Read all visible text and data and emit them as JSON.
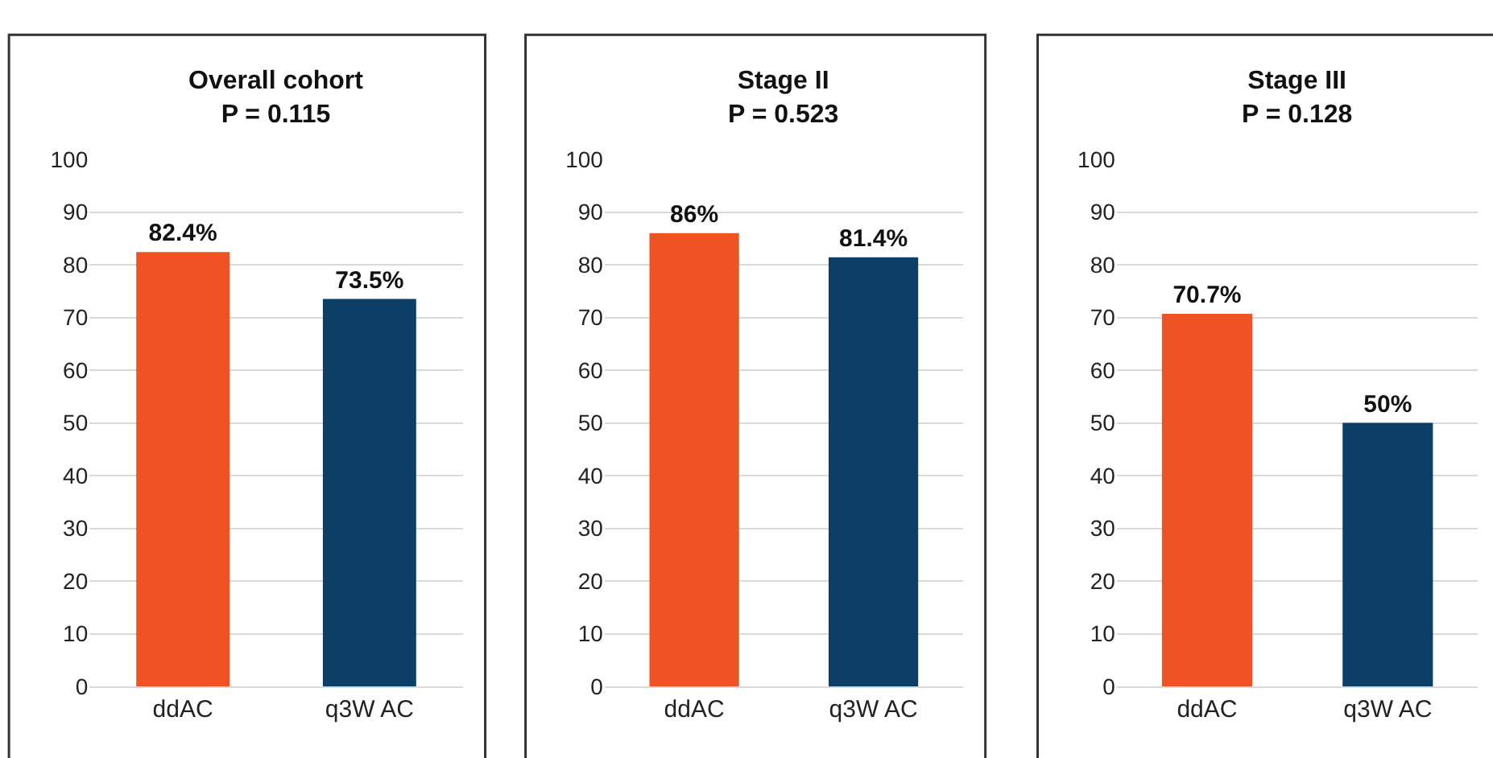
{
  "chart_data": [
    {
      "type": "bar",
      "title": "Overall cohort\nP = 0.115",
      "categories": [
        "ddAC",
        "q3W AC"
      ],
      "values": [
        82.4,
        73.5
      ],
      "colors": [
        "#f05323",
        "#0c3f66"
      ],
      "value_labels": [
        "82.4%",
        "73.5%"
      ],
      "ylim": [
        0,
        100
      ],
      "yticks": [
        0,
        10,
        20,
        30,
        40,
        50,
        60,
        70,
        80,
        90,
        100
      ],
      "grid": "y"
    },
    {
      "type": "bar",
      "title": "Stage II\nP = 0.523",
      "categories": [
        "ddAC",
        "q3W AC"
      ],
      "values": [
        86,
        81.4
      ],
      "colors": [
        "#f05323",
        "#0c3f66"
      ],
      "value_labels": [
        "86%",
        "81.4%"
      ],
      "ylim": [
        0,
        100
      ],
      "yticks": [
        0,
        10,
        20,
        30,
        40,
        50,
        60,
        70,
        80,
        90,
        100
      ],
      "grid": "y"
    },
    {
      "type": "bar",
      "title": "Stage III\nP = 0.128",
      "categories": [
        "ddAC",
        "q3W AC"
      ],
      "values": [
        70.7,
        50
      ],
      "colors": [
        "#f05323",
        "#0c3f66"
      ],
      "value_labels": [
        "70.7%",
        "50%"
      ],
      "ylim": [
        0,
        100
      ],
      "yticks": [
        0,
        10,
        20,
        30,
        40,
        50,
        60,
        70,
        80,
        90,
        100
      ],
      "grid": "y"
    }
  ]
}
